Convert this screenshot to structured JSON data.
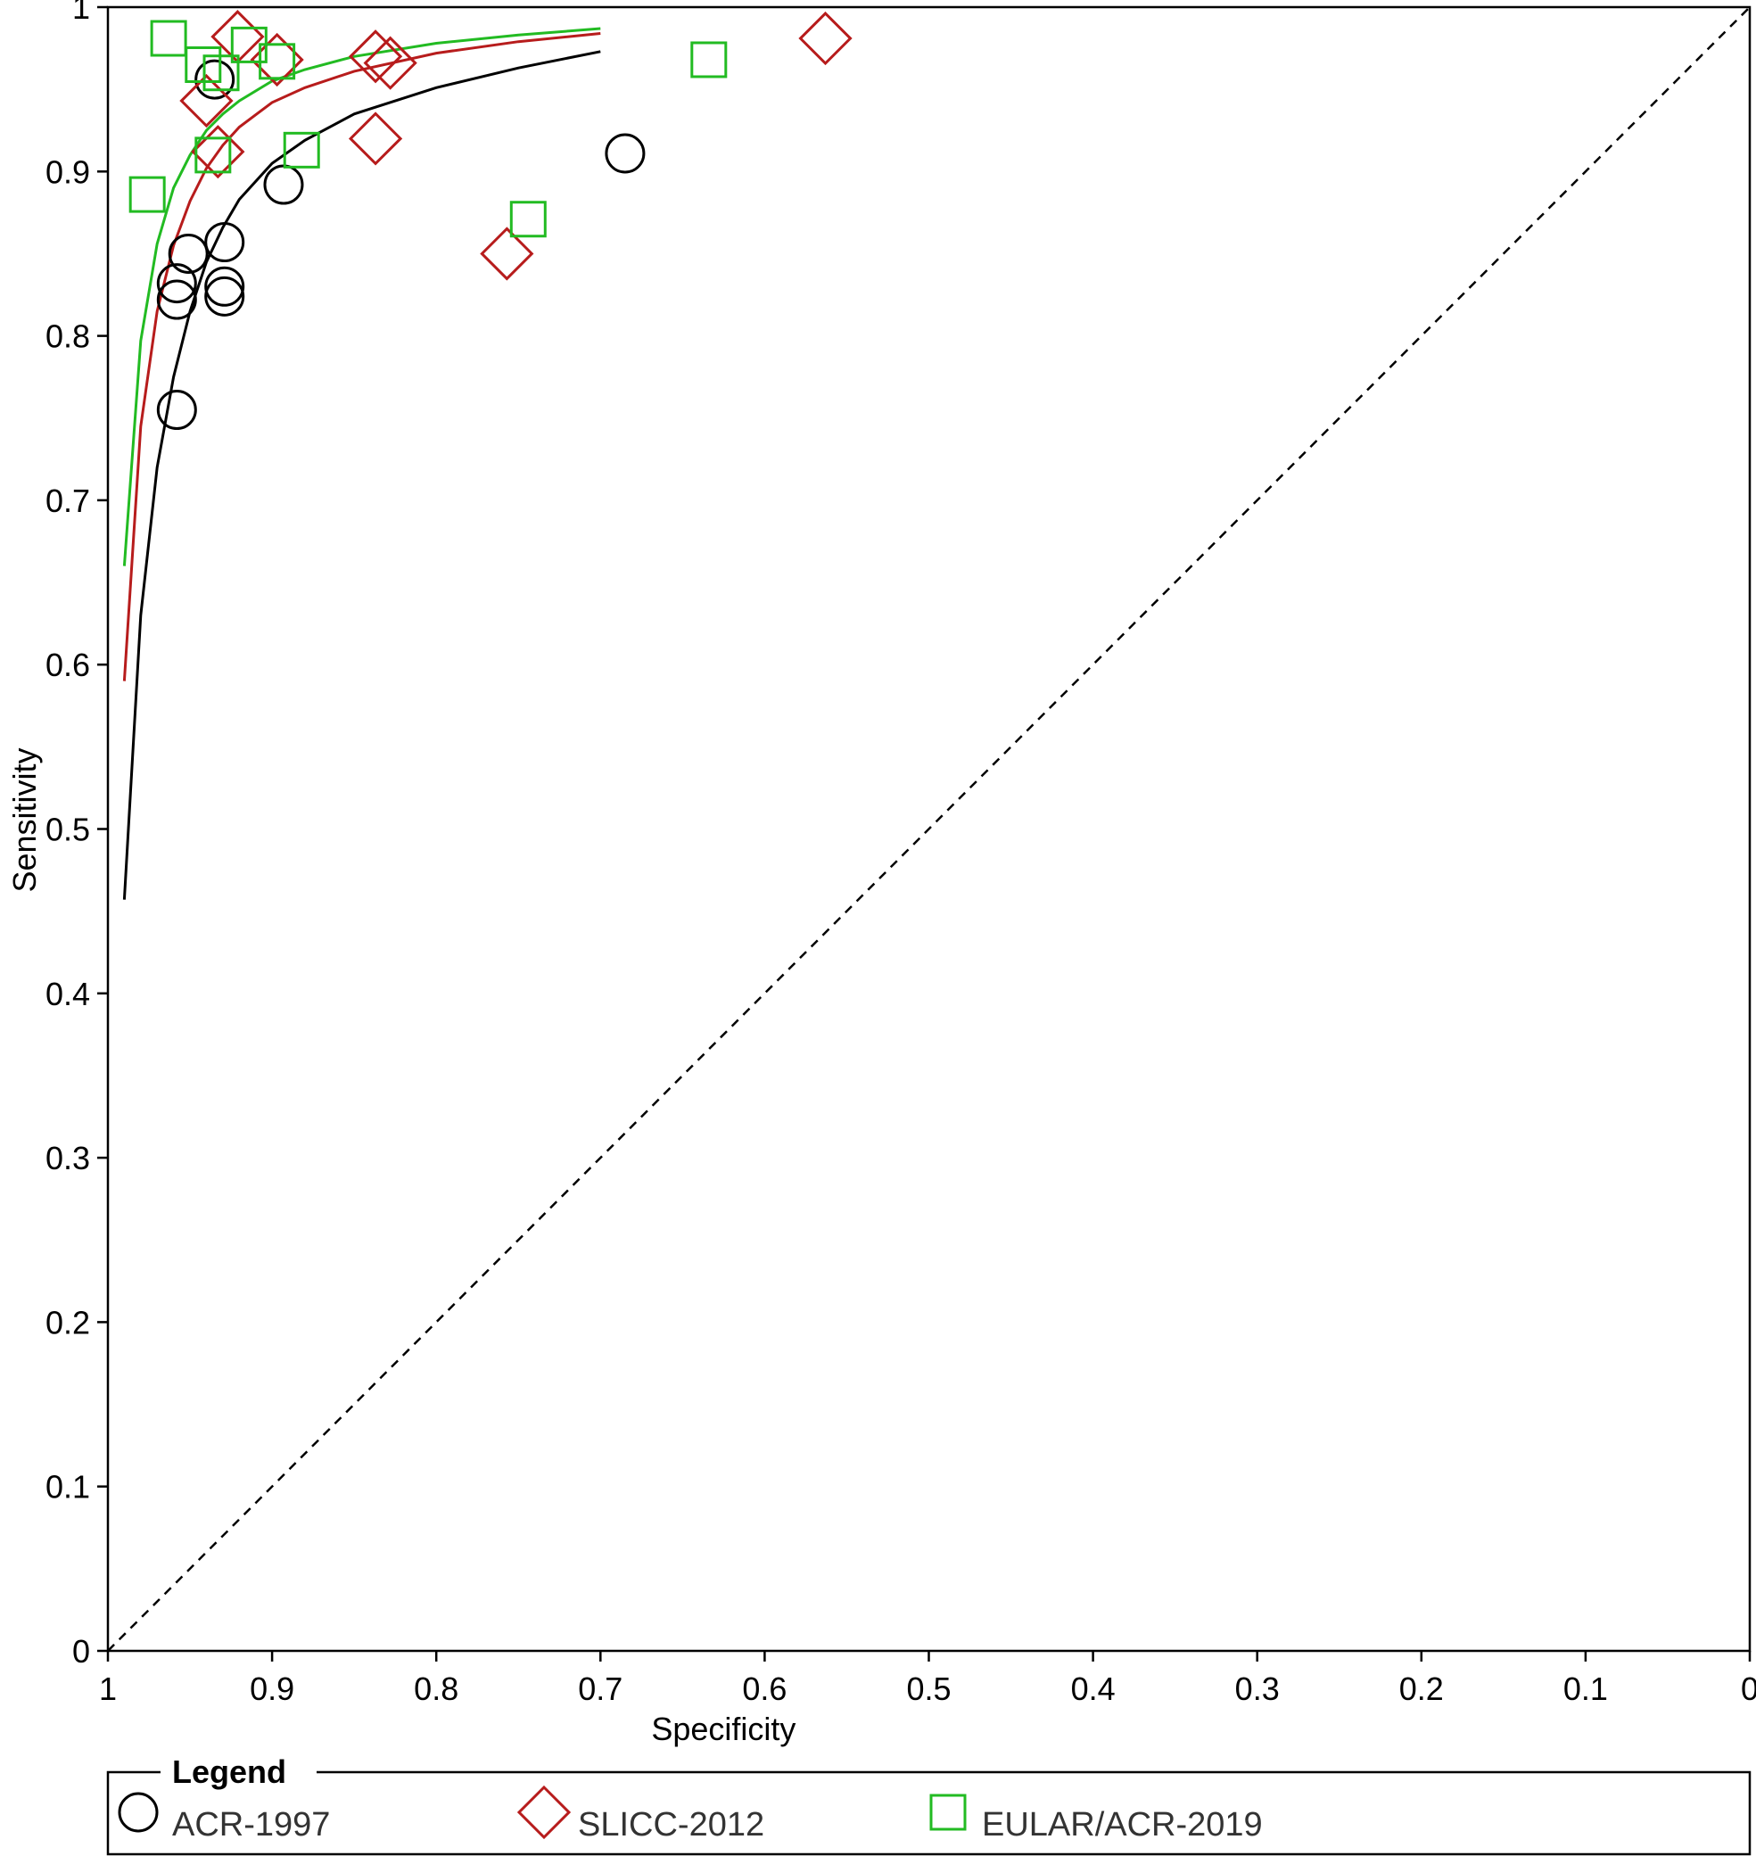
{
  "chart_data": {
    "type": "scatter",
    "xlabel": "Specificity",
    "ylabel": "Sensitivity",
    "xlim": [
      1,
      0
    ],
    "ylim": [
      0,
      1
    ],
    "x_reversed": true,
    "x_ticks": [
      1,
      0.9,
      0.8,
      0.7,
      0.6,
      0.5,
      0.4,
      0.3,
      0.2,
      0.1,
      0
    ],
    "y_ticks": [
      0,
      0.1,
      0.2,
      0.3,
      0.4,
      0.5,
      0.6,
      0.7,
      0.8,
      0.9,
      1
    ],
    "x_tick_labels": [
      "1",
      "0.9",
      "0.8",
      "0.7",
      "0.6",
      "0.5",
      "0.4",
      "0.3",
      "0.2",
      "0.1",
      "0"
    ],
    "y_tick_labels": [
      "0",
      "0.1",
      "0.2",
      "0.3",
      "0.4",
      "0.5",
      "0.6",
      "0.7",
      "0.8",
      "0.9",
      "1"
    ],
    "reference_line": {
      "from": [
        1,
        0
      ],
      "to": [
        0,
        1
      ],
      "style": "dashed",
      "color": "#000000"
    },
    "legend": {
      "title": "Legend",
      "placement": "bottom",
      "items": [
        {
          "label": "ACR-1997",
          "marker": "circle",
          "color": "#000000"
        },
        {
          "label": "SLICC-2012",
          "marker": "diamond",
          "color": "#b71c1c"
        },
        {
          "label": "EULAR/ACR-2019",
          "marker": "square",
          "color": "#22bb22"
        }
      ]
    },
    "series": [
      {
        "name": "ACR-1997",
        "marker": "circle",
        "color": "#000000",
        "points": [
          [
            0.935,
            0.956
          ],
          [
            0.893,
            0.892
          ],
          [
            0.685,
            0.911
          ],
          [
            0.929,
            0.857
          ],
          [
            0.951,
            0.85
          ],
          [
            0.929,
            0.83
          ],
          [
            0.958,
            0.832
          ],
          [
            0.929,
            0.824
          ],
          [
            0.958,
            0.822
          ],
          [
            0.958,
            0.755
          ]
        ],
        "curve": [
          [
            0.99,
            0.457
          ],
          [
            0.98,
            0.63
          ],
          [
            0.97,
            0.72
          ],
          [
            0.96,
            0.775
          ],
          [
            0.95,
            0.815
          ],
          [
            0.94,
            0.845
          ],
          [
            0.93,
            0.866
          ],
          [
            0.92,
            0.883
          ],
          [
            0.9,
            0.905
          ],
          [
            0.88,
            0.919
          ],
          [
            0.85,
            0.935
          ],
          [
            0.8,
            0.951
          ],
          [
            0.75,
            0.963
          ],
          [
            0.7,
            0.973
          ]
        ]
      },
      {
        "name": "SLICC-2012",
        "marker": "diamond",
        "color": "#b71c1c",
        "points": [
          [
            0.921,
            0.982
          ],
          [
            0.897,
            0.968
          ],
          [
            0.563,
            0.981
          ],
          [
            0.837,
            0.97
          ],
          [
            0.828,
            0.966
          ],
          [
            0.94,
            0.943
          ],
          [
            0.933,
            0.912
          ],
          [
            0.837,
            0.92
          ],
          [
            0.757,
            0.85
          ]
        ],
        "curve": [
          [
            0.99,
            0.59
          ],
          [
            0.98,
            0.745
          ],
          [
            0.97,
            0.815
          ],
          [
            0.96,
            0.855
          ],
          [
            0.95,
            0.882
          ],
          [
            0.94,
            0.902
          ],
          [
            0.93,
            0.916
          ],
          [
            0.92,
            0.927
          ],
          [
            0.9,
            0.942
          ],
          [
            0.88,
            0.951
          ],
          [
            0.85,
            0.961
          ],
          [
            0.8,
            0.972
          ],
          [
            0.75,
            0.979
          ],
          [
            0.7,
            0.984
          ]
        ]
      },
      {
        "name": "EULAR/ACR-2019",
        "marker": "square",
        "color": "#22bb22",
        "points": [
          [
            0.963,
            0.981
          ],
          [
            0.914,
            0.977
          ],
          [
            0.942,
            0.965
          ],
          [
            0.897,
            0.967
          ],
          [
            0.931,
            0.96
          ],
          [
            0.634,
            0.968
          ],
          [
            0.936,
            0.91
          ],
          [
            0.882,
            0.913
          ],
          [
            0.976,
            0.886
          ],
          [
            0.744,
            0.871
          ]
        ],
        "curve": [
          [
            0.99,
            0.66
          ],
          [
            0.98,
            0.797
          ],
          [
            0.97,
            0.856
          ],
          [
            0.96,
            0.89
          ],
          [
            0.95,
            0.91
          ],
          [
            0.94,
            0.925
          ],
          [
            0.93,
            0.935
          ],
          [
            0.92,
            0.943
          ],
          [
            0.9,
            0.955
          ],
          [
            0.88,
            0.962
          ],
          [
            0.85,
            0.97
          ],
          [
            0.8,
            0.978
          ],
          [
            0.75,
            0.983
          ],
          [
            0.7,
            0.987
          ]
        ]
      }
    ]
  }
}
